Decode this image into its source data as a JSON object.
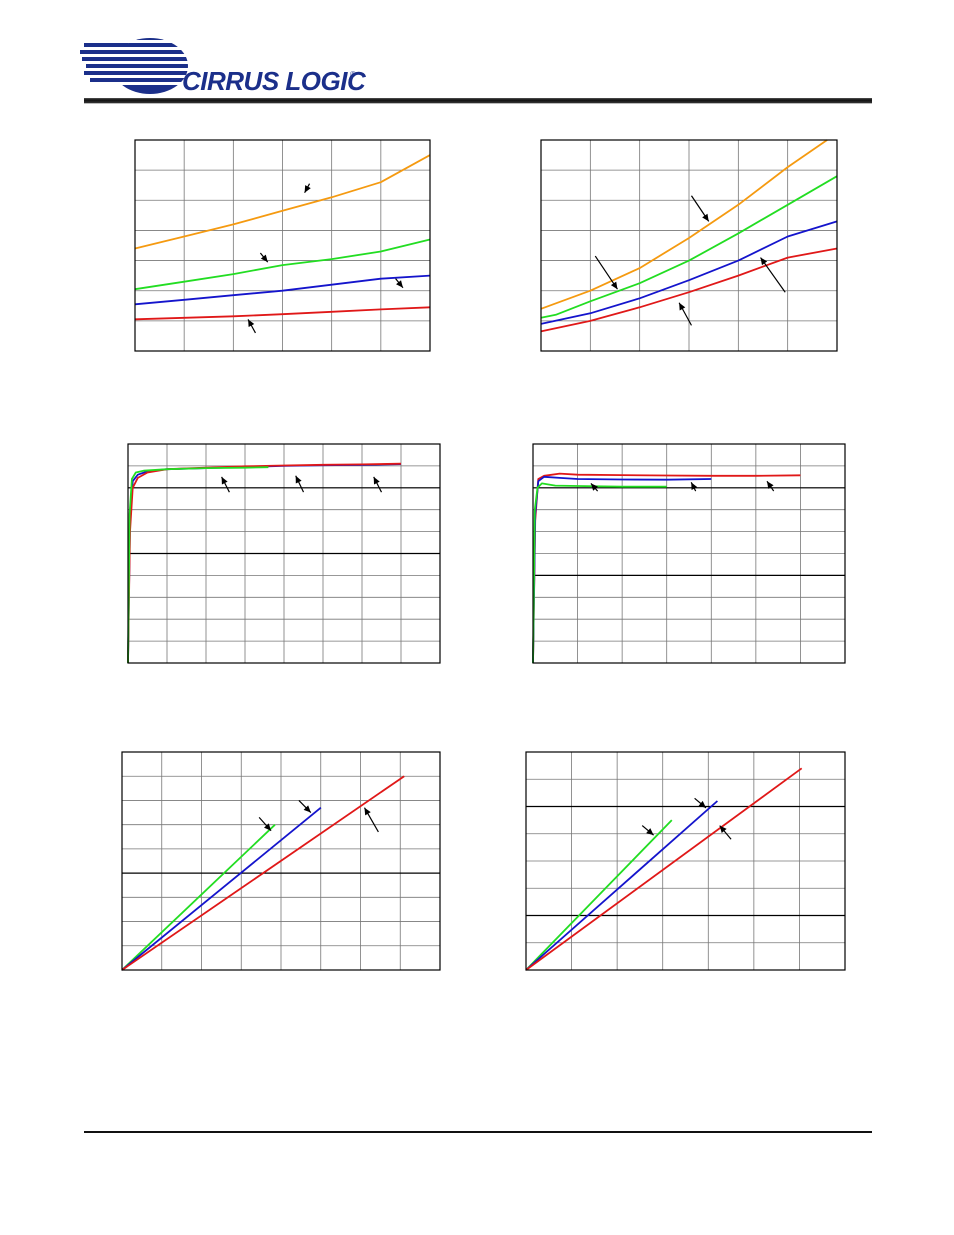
{
  "header": {
    "logo_text": "CIRRUS LOGIC",
    "logo_reg": "®",
    "colors": {
      "brand": "#1b2f8a",
      "rule": "#111111"
    }
  },
  "colors": {
    "orange": "#f59a10",
    "green": "#22dd22",
    "blue": "#1414cc",
    "red": "#e01818"
  },
  "chart_data": [
    {
      "type": "line",
      "xlim": [
        0,
        6
      ],
      "ylim": [
        0,
        7
      ],
      "x_divisions": 6,
      "y_divisions": 7,
      "series": [
        {
          "color": "orange",
          "x": [
            0,
            1,
            2,
            3,
            4,
            5,
            6
          ],
          "y": [
            3.4,
            3.8,
            4.2,
            4.65,
            5.1,
            5.6,
            6.5
          ]
        },
        {
          "color": "green",
          "x": [
            0,
            1,
            2,
            3,
            4,
            5,
            6
          ],
          "y": [
            2.05,
            2.3,
            2.55,
            2.85,
            3.05,
            3.3,
            3.7
          ]
        },
        {
          "color": "blue",
          "x": [
            0,
            1,
            2,
            3,
            4,
            5,
            6
          ],
          "y": [
            1.55,
            1.7,
            1.85,
            2.0,
            2.2,
            2.4,
            2.5
          ]
        },
        {
          "color": "red",
          "x": [
            0,
            1,
            2,
            3,
            4,
            5,
            6
          ],
          "y": [
            1.05,
            1.1,
            1.15,
            1.22,
            1.3,
            1.38,
            1.45
          ]
        }
      ],
      "arrows": [
        {
          "from": [
            3.55,
            5.55
          ],
          "to": [
            3.45,
            5.25
          ]
        },
        {
          "from": [
            2.55,
            3.25
          ],
          "to": [
            2.7,
            2.95
          ]
        },
        {
          "from": [
            5.3,
            2.4
          ],
          "to": [
            5.45,
            2.1
          ]
        },
        {
          "from": [
            2.45,
            0.6
          ],
          "to": [
            2.3,
            1.05
          ]
        }
      ]
    },
    {
      "type": "line",
      "xlim": [
        0,
        6
      ],
      "ylim": [
        0,
        7
      ],
      "x_divisions": 6,
      "y_divisions": 7,
      "series": [
        {
          "color": "orange",
          "x": [
            0,
            1,
            2,
            3,
            4,
            5,
            5.8
          ],
          "y": [
            1.4,
            2.0,
            2.75,
            3.75,
            4.85,
            6.1,
            7.0
          ]
        },
        {
          "color": "green",
          "x": [
            0,
            0.3,
            1,
            2,
            3,
            4,
            5,
            6
          ],
          "y": [
            1.1,
            1.2,
            1.65,
            2.25,
            3.0,
            3.9,
            4.85,
            5.8
          ]
        },
        {
          "color": "blue",
          "x": [
            0,
            1,
            2,
            3,
            4,
            5,
            6
          ],
          "y": [
            0.9,
            1.25,
            1.75,
            2.35,
            3.0,
            3.8,
            4.3
          ]
        },
        {
          "color": "red",
          "x": [
            0,
            1,
            2,
            3,
            4,
            5,
            6
          ],
          "y": [
            0.65,
            1.0,
            1.45,
            1.95,
            2.5,
            3.1,
            3.4
          ]
        }
      ],
      "arrows": [
        {
          "from": [
            3.05,
            5.15
          ],
          "to": [
            3.4,
            4.3
          ]
        },
        {
          "from": [
            1.1,
            3.15
          ],
          "to": [
            1.55,
            2.05
          ]
        },
        {
          "from": [
            4.95,
            1.95
          ],
          "to": [
            4.45,
            3.1
          ]
        },
        {
          "from": [
            3.05,
            0.85
          ],
          "to": [
            2.8,
            1.6
          ]
        }
      ]
    },
    {
      "type": "line",
      "xlim": [
        0,
        8
      ],
      "ylim": [
        0,
        10
      ],
      "x_divisions": 8,
      "y_divisions": 10,
      "hlines": [
        8.0,
        5.0
      ],
      "series": [
        {
          "color": "blue",
          "x": [
            0,
            0.05,
            0.12,
            0.25,
            0.5,
            1,
            2,
            3,
            4,
            5,
            6,
            7
          ],
          "y": [
            0,
            6.5,
            8.3,
            8.6,
            8.75,
            8.85,
            8.9,
            8.95,
            9.0,
            9.03,
            9.05,
            9.08
          ]
        },
        {
          "color": "red",
          "x": [
            0,
            0.05,
            0.12,
            0.25,
            0.5,
            1,
            2,
            3,
            4,
            5,
            6,
            7
          ],
          "y": [
            0,
            6.0,
            8.0,
            8.45,
            8.7,
            8.85,
            8.92,
            8.98,
            9.02,
            9.05,
            9.07,
            9.1
          ]
        },
        {
          "color": "green",
          "x": [
            0,
            0.04,
            0.1,
            0.2,
            0.4,
            1,
            2,
            3,
            3.6
          ],
          "y": [
            0,
            6.8,
            8.4,
            8.7,
            8.78,
            8.85,
            8.9,
            8.92,
            8.94
          ]
        }
      ],
      "arrows": [
        {
          "from": [
            2.6,
            7.8
          ],
          "to": [
            2.4,
            8.5
          ]
        },
        {
          "from": [
            4.5,
            7.8
          ],
          "to": [
            4.3,
            8.55
          ]
        },
        {
          "from": [
            6.5,
            7.8
          ],
          "to": [
            6.3,
            8.5
          ]
        }
      ]
    },
    {
      "type": "line",
      "xlim": [
        0,
        7
      ],
      "ylim": [
        0,
        10
      ],
      "x_divisions": 7,
      "y_divisions": 10,
      "hlines": [
        8.0,
        4.0
      ],
      "series": [
        {
          "color": "red",
          "x": [
            0,
            0.05,
            0.12,
            0.25,
            0.6,
            1,
            2,
            3,
            4,
            5,
            6
          ],
          "y": [
            0,
            6.5,
            8.4,
            8.55,
            8.65,
            8.6,
            8.58,
            8.56,
            8.55,
            8.55,
            8.57
          ]
        },
        {
          "color": "blue",
          "x": [
            0,
            0.05,
            0.12,
            0.25,
            0.6,
            1,
            2,
            3,
            4
          ],
          "y": [
            0,
            6.8,
            8.3,
            8.5,
            8.45,
            8.4,
            8.38,
            8.37,
            8.4
          ]
        },
        {
          "color": "green",
          "x": [
            0,
            0.04,
            0.1,
            0.2,
            0.5,
            1,
            2,
            3
          ],
          "y": [
            0,
            7.0,
            8.0,
            8.2,
            8.1,
            8.08,
            8.05,
            8.05
          ]
        }
      ],
      "arrows": [
        {
          "from": [
            1.45,
            7.85
          ],
          "to": [
            1.3,
            8.2
          ]
        },
        {
          "from": [
            3.65,
            7.85
          ],
          "to": [
            3.55,
            8.25
          ]
        },
        {
          "from": [
            5.4,
            7.85
          ],
          "to": [
            5.25,
            8.3
          ]
        }
      ]
    },
    {
      "type": "line",
      "xlim": [
        0,
        8
      ],
      "ylim": [
        0,
        9
      ],
      "x_divisions": 8,
      "y_divisions": 9,
      "hlines": [
        4.0
      ],
      "series": [
        {
          "color": "green",
          "x": [
            0,
            3.85
          ],
          "y": [
            0,
            6.0
          ]
        },
        {
          "color": "blue",
          "x": [
            0,
            5.0
          ],
          "y": [
            0,
            6.7
          ]
        },
        {
          "color": "red",
          "x": [
            0,
            7.1
          ],
          "y": [
            0,
            8.0
          ]
        }
      ],
      "arrows": [
        {
          "from": [
            3.45,
            6.3
          ],
          "to": [
            3.75,
            5.75
          ]
        },
        {
          "from": [
            4.45,
            7.0
          ],
          "to": [
            4.75,
            6.5
          ]
        },
        {
          "from": [
            6.45,
            5.7
          ],
          "to": [
            6.1,
            6.7
          ]
        }
      ]
    },
    {
      "type": "line",
      "xlim": [
        0,
        7
      ],
      "ylim": [
        0,
        8
      ],
      "x_divisions": 7,
      "y_divisions": 8,
      "hlines": [
        6.0,
        2.0
      ],
      "series": [
        {
          "color": "green",
          "x": [
            0,
            3.2
          ],
          "y": [
            0,
            5.5
          ]
        },
        {
          "color": "blue",
          "x": [
            0,
            4.2
          ],
          "y": [
            0,
            6.2
          ]
        },
        {
          "color": "red",
          "x": [
            0,
            6.05
          ],
          "y": [
            0,
            7.4
          ]
        }
      ],
      "arrows": [
        {
          "from": [
            2.55,
            5.3
          ],
          "to": [
            2.8,
            4.95
          ]
        },
        {
          "from": [
            3.7,
            6.3
          ],
          "to": [
            3.95,
            5.95
          ]
        },
        {
          "from": [
            4.5,
            4.8
          ],
          "to": [
            4.25,
            5.3
          ]
        }
      ]
    }
  ]
}
